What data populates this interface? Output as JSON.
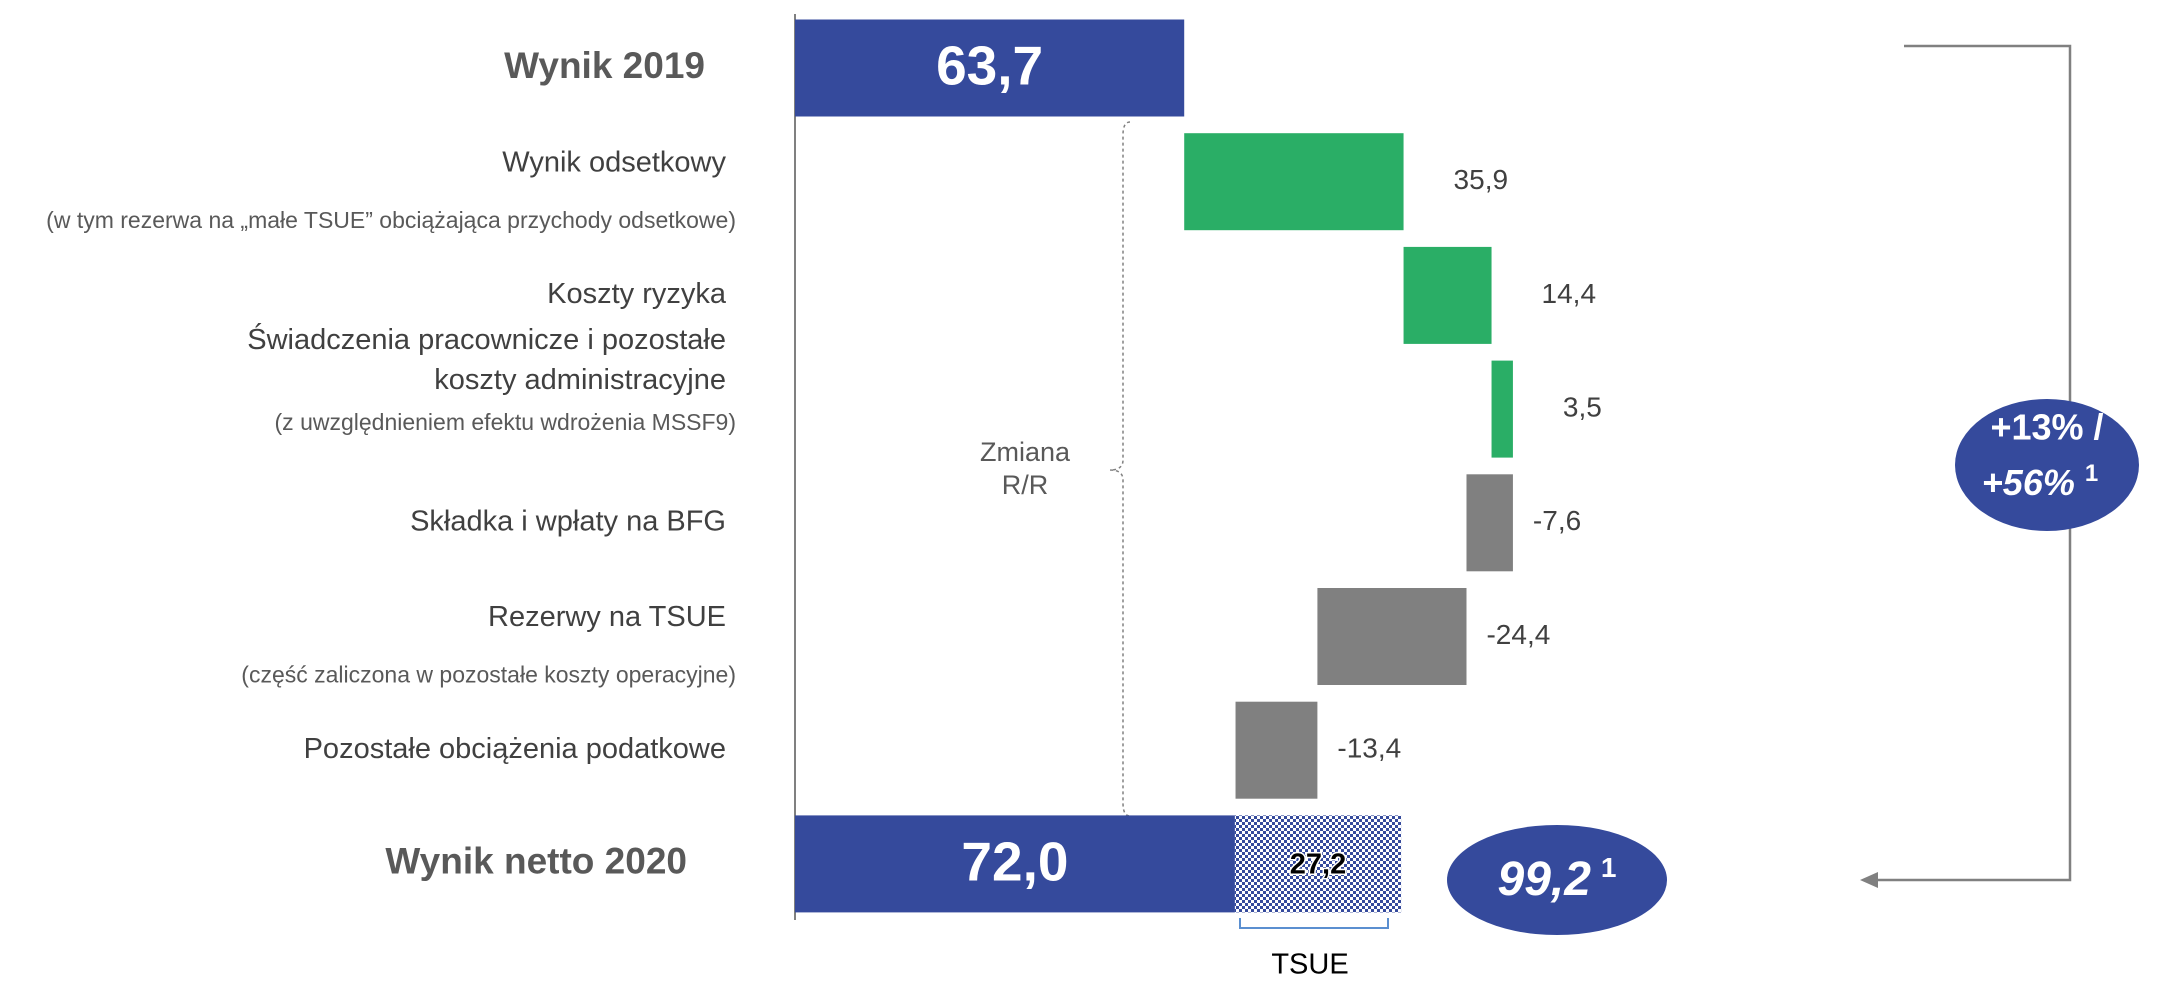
{
  "chart_data": {
    "type": "waterfall",
    "categories": [
      "Wynik 2019",
      "Wynik odsetkowy",
      "Koszty ryzyka",
      "Świadczenia pracownicze i pozostałe koszty administracyjne",
      "Składka i wpłaty na BFG",
      "Rezerwy na TSUE",
      "Pozostałe obciążenia podatkowe",
      "Wynik netto 2020"
    ],
    "category_notes": [
      null,
      "(w tym rezerwa na „małe TSUE” obciążająca przychody odsetkowe)",
      null,
      "(z uwzględnieniem efektu wdrożenia MSSF9)",
      null,
      "(część zaliczona w pozostałe koszty operacyjne)",
      null,
      null
    ],
    "values": [
      63.7,
      35.9,
      14.4,
      3.5,
      -7.6,
      -24.4,
      -13.4,
      72.0
    ],
    "value_labels": [
      "63,7",
      "35,9",
      "14,4",
      "3,5",
      "-7,6",
      "-24,4",
      "-13,4",
      "72,0"
    ],
    "colors": [
      "#354a9c",
      "#2aae66",
      "#2aae66",
      "#2aae66",
      "#808080",
      "#808080",
      "#808080",
      "#354a9c"
    ],
    "adjustment": {
      "value": 27.2,
      "value_label": "27,2",
      "label": "TSUE",
      "color": "#354a9c"
    },
    "adjusted_total": {
      "value": 99.2,
      "value_label": "99,2",
      "footnote": "1"
    },
    "change_label": [
      "+13% /",
      "+56%"
    ],
    "change_footnote": "1",
    "bracket_label": [
      "Zmiana",
      "R/R"
    ]
  }
}
